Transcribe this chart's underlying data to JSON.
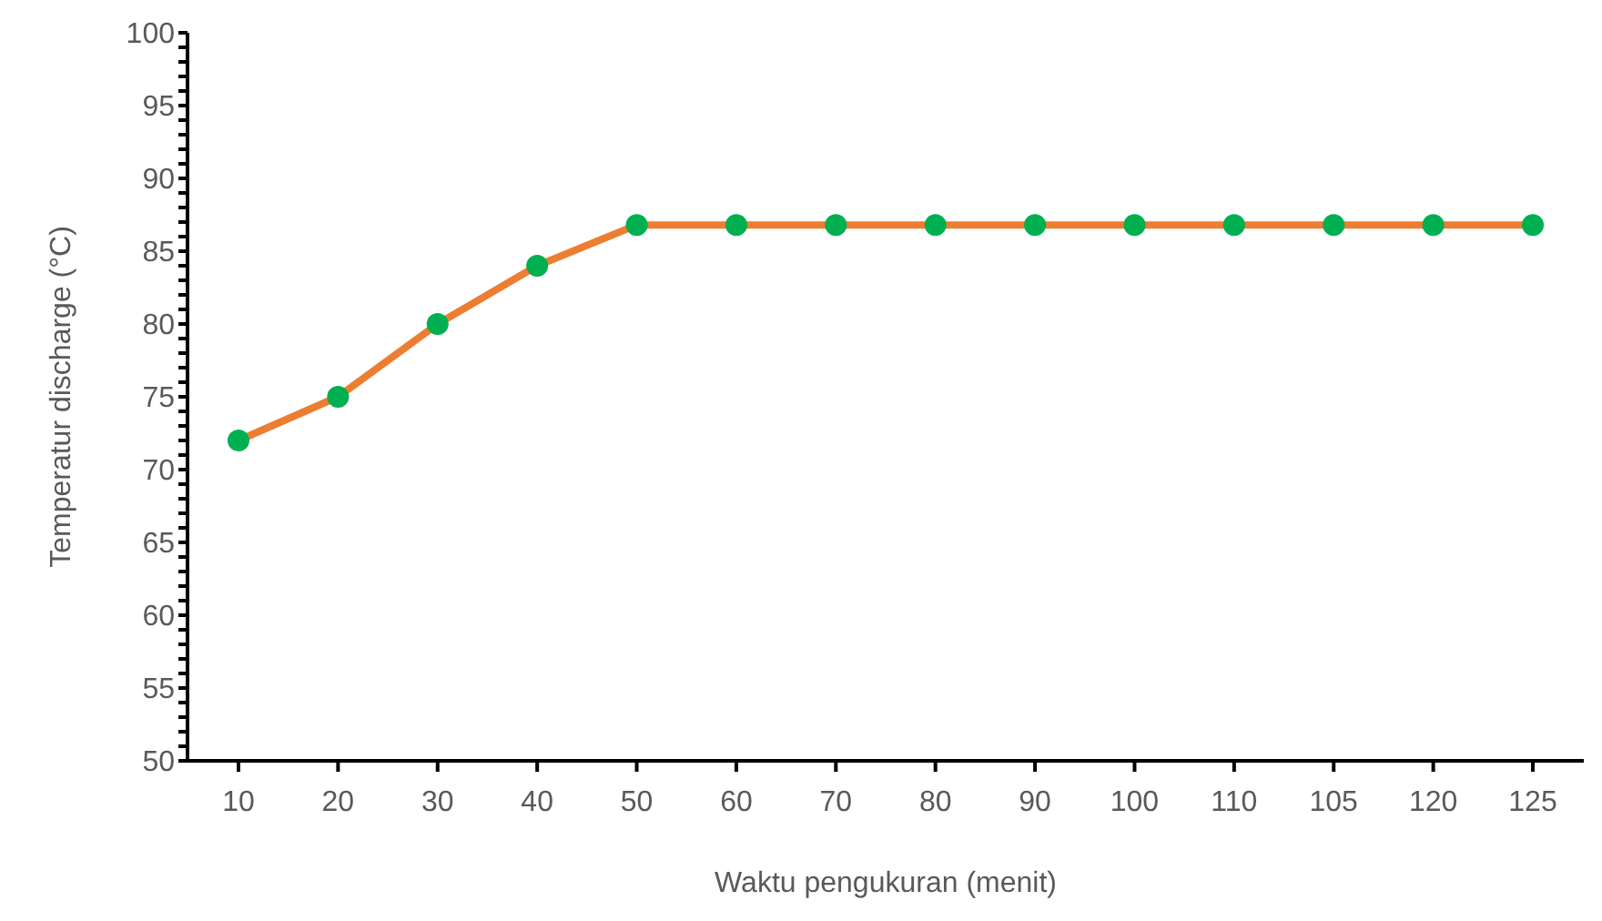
{
  "chart_data": {
    "type": "line",
    "xlabel": "Waktu pengukuran  (menit)",
    "ylabel": "Temperatur discharge (°C)",
    "categories": [
      "10",
      "20",
      "30",
      "40",
      "50",
      "60",
      "70",
      "80",
      "90",
      "100",
      "110",
      "105",
      "120",
      "125"
    ],
    "series": [
      {
        "color": "#ed7d31",
        "colors": [
          "#00b050",
          "#00b050",
          "#00b050",
          "#00b050",
          "#00b050",
          "#00b050",
          "#00b050",
          "#00b050",
          "#00b050",
          "#00b050",
          "#00b050",
          "#00b050",
          "#00b050",
          "#00b050"
        ],
        "values": [
          72,
          75,
          80,
          84,
          86.8,
          86.8,
          86.8,
          86.8,
          86.8,
          86.8,
          86.8,
          86.8,
          86.8,
          86.8
        ]
      }
    ],
    "ylim": [
      50,
      100
    ],
    "yticks": [
      50,
      {
        "value": 51,
        "label": null
      },
      {
        "value": 52,
        "label": null
      },
      {
        "value": 53,
        "label": null
      },
      {
        "value": 54,
        "label": null
      },
      55,
      {
        "value": 56,
        "label": null
      },
      {
        "value": 57,
        "label": null
      },
      {
        "value": 58,
        "label": null
      },
      {
        "value": 59,
        "label": null
      },
      60,
      {
        "value": 61,
        "label": null
      },
      {
        "value": 62,
        "label": null
      },
      {
        "value": 63,
        "label": null
      },
      {
        "value": 64,
        "label": null
      },
      65,
      {
        "value": 66,
        "label": null
      },
      {
        "value": 67,
        "label": null
      },
      {
        "value": 68,
        "label": null
      },
      {
        "value": 69,
        "label": null
      },
      70,
      {
        "value": 71,
        "label": null
      },
      {
        "value": 72,
        "label": null
      },
      {
        "value": 73,
        "label": null
      },
      {
        "value": 74,
        "label": null
      },
      75,
      {
        "value": 76,
        "label": null
      },
      {
        "value": 77,
        "label": null
      },
      {
        "value": 78,
        "label": null
      },
      {
        "value": 79,
        "label": null
      },
      80,
      {
        "value": 81,
        "label": null
      },
      {
        "value": 82,
        "label": null
      },
      {
        "value": 83,
        "label": null
      },
      {
        "value": 84,
        "label": null
      },
      85,
      {
        "value": 86,
        "label": null
      },
      {
        "value": 87,
        "label": null
      },
      {
        "value": 88,
        "label": null
      },
      {
        "value": 89,
        "label": null
      },
      90,
      {
        "value": 91,
        "label": null
      },
      {
        "value": 92,
        "label": null
      },
      {
        "value": 93,
        "label": null
      },
      {
        "value": 94,
        "label": null
      },
      95,
      {
        "value": 96,
        "label": null
      },
      {
        "value": 97,
        "label": null
      },
      {
        "value": 98,
        "label": null
      },
      {
        "value": 99,
        "label": null
      },
      100
    ],
    "grid": false,
    "legend": false,
    "marker": "circle",
    "line_style": "solid"
  }
}
